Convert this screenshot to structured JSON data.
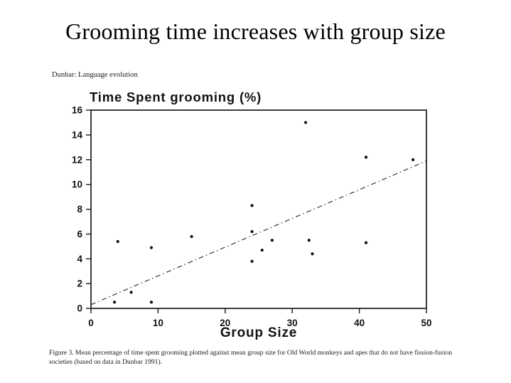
{
  "slide": {
    "title": "Grooming time increases with group size"
  },
  "figure": {
    "source_label": "Dunbar: Language evolution",
    "caption": "Figure 3.   Mean percentage of time spent grooming plotted against mean group size for Old World monkeys and apes that do not have fission-fusion societies (based on data in Dunbar 1991)."
  },
  "chart_data": {
    "type": "scatter",
    "title": "Time Spent grooming (%)",
    "xlabel": "Group Size",
    "ylabel": "Time Spent grooming (%)",
    "xlim": [
      0,
      50
    ],
    "ylim": [
      0,
      16
    ],
    "x_ticks": [
      0,
      10,
      20,
      30,
      40,
      50
    ],
    "y_ticks": [
      0,
      2,
      4,
      6,
      8,
      10,
      12,
      14,
      16
    ],
    "grid": false,
    "legend": null,
    "points": [
      [
        3.5,
        0.5
      ],
      [
        4,
        5.4
      ],
      [
        6,
        1.3
      ],
      [
        9,
        4.9
      ],
      [
        9,
        0.5
      ],
      [
        15,
        5.8
      ],
      [
        24,
        8.3
      ],
      [
        24,
        6.2
      ],
      [
        24,
        3.8
      ],
      [
        25.5,
        4.7
      ],
      [
        27,
        5.5
      ],
      [
        32,
        15
      ],
      [
        32.5,
        5.5
      ],
      [
        33,
        4.4
      ],
      [
        41,
        12.2
      ],
      [
        41,
        5.3
      ],
      [
        48,
        12
      ]
    ],
    "trend_line": {
      "start": [
        0,
        0.3
      ],
      "end": [
        50,
        11.9
      ],
      "style": "dash-dot"
    }
  }
}
